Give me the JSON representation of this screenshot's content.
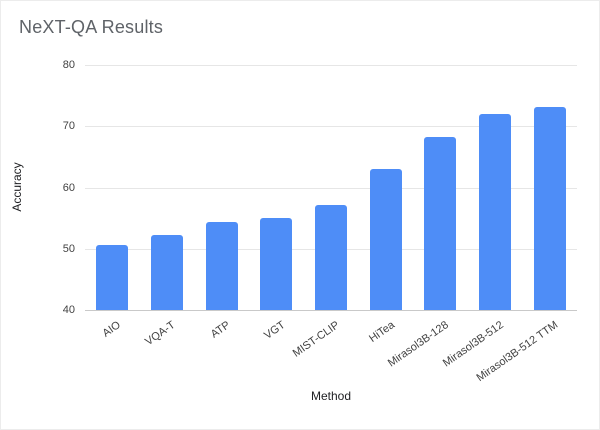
{
  "chart_data": {
    "type": "bar",
    "title": "NeXT-QA Results",
    "xlabel": "Method",
    "ylabel": "Accuracy",
    "categories": [
      "AIO",
      "VQA-T",
      "ATP",
      "VGT",
      "MIST-CLIP",
      "HiTea",
      "Mirasol3B-128",
      "Mirasol3B-512",
      "Mirasol3B-512 TTM"
    ],
    "values": [
      50.6,
      52.3,
      54.3,
      55.0,
      57.2,
      63.1,
      68.2,
      72.0,
      73.2
    ],
    "ylim": [
      40,
      80
    ],
    "yticks": [
      40,
      50,
      60,
      70,
      80
    ],
    "grid": true,
    "legend": "none",
    "bar_color": "#4e8df7",
    "colors": {
      "title": "#5f6368",
      "axis_title": "#202124",
      "tick_label": "#424242",
      "gridline": "#e6e6e6",
      "baseline": "#c9c9c9",
      "background": "#ffffff"
    }
  }
}
